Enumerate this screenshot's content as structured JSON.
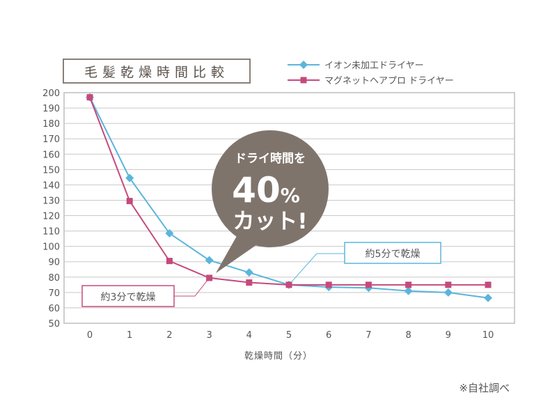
{
  "chart_data": {
    "type": "line",
    "title": "毛髪乾燥時間比較",
    "xlabel": "乾燥時間（分）",
    "ylabel": "",
    "x": [
      0,
      1,
      2,
      3,
      4,
      5,
      6,
      7,
      8,
      9,
      10
    ],
    "ylim": [
      50,
      200
    ],
    "ytick_step": 10,
    "grid": true,
    "legend_position": "top-right",
    "series": [
      {
        "name": "イオン未加工ドライヤー",
        "color": "#5bb5db",
        "marker": "diamond",
        "values": [
          197,
          144.5,
          108.5,
          91,
          83,
          75,
          73.5,
          73,
          71,
          70,
          66.5
        ]
      },
      {
        "name": "マグネットヘアプロ ドライヤー",
        "color": "#c54a7c",
        "marker": "square",
        "values": [
          197,
          129.5,
          90.5,
          79.5,
          76.5,
          75,
          75,
          75,
          75,
          75,
          75
        ]
      }
    ],
    "annotations": [
      {
        "text": "約3分で乾燥",
        "color": "#c54a7c",
        "x": 3,
        "y": 79.5
      },
      {
        "text": "約5分で乾燥",
        "color": "#5bb5db",
        "x": 5,
        "y": 75
      }
    ],
    "bubble": {
      "line1": "ドライ時間を",
      "line2_num": "40",
      "line2_unit": "%",
      "line3": "カット!",
      "color": "#7f746c"
    }
  },
  "footnote": "※自社調べ"
}
